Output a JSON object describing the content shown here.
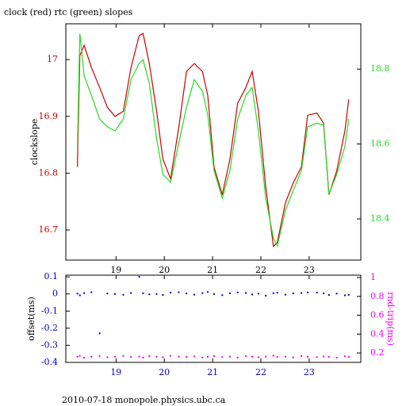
{
  "chart_data": [
    {
      "type": "line",
      "title": "clock (red) rtc (green) slopes",
      "y_label": "clockslope",
      "x": [
        18.2,
        18.25,
        18.34,
        18.49,
        18.66,
        18.82,
        18.98,
        19.15,
        19.31,
        19.48,
        19.56,
        19.69,
        19.84,
        19.97,
        20.13,
        20.3,
        20.46,
        20.62,
        20.79,
        20.9,
        21.03,
        21.2,
        21.36,
        21.52,
        21.69,
        21.82,
        21.95,
        22.1,
        22.26,
        22.34,
        22.51,
        22.67,
        22.84,
        22.97,
        23.16,
        23.3,
        23.41,
        23.57,
        23.74,
        23.82
      ],
      "series": [
        {
          "name": "clock",
          "color": "#cc0000",
          "axis": "y",
          "values": [
            16.811,
            17.007,
            17.025,
            16.986,
            16.951,
            16.916,
            16.9,
            16.909,
            16.986,
            17.042,
            17.046,
            16.993,
            16.909,
            16.825,
            16.79,
            16.881,
            16.979,
            16.993,
            16.979,
            16.937,
            16.811,
            16.762,
            16.825,
            16.923,
            16.951,
            16.979,
            16.909,
            16.776,
            16.671,
            16.678,
            16.748,
            16.783,
            16.811,
            16.902,
            16.906,
            16.888,
            16.762,
            16.804,
            16.874,
            16.93
          ]
        },
        {
          "name": "rtc",
          "color": "#22dd22",
          "axis": "y2",
          "values": [
            18.582,
            18.895,
            18.783,
            18.73,
            18.667,
            18.646,
            18.635,
            18.667,
            18.772,
            18.815,
            18.825,
            18.762,
            18.614,
            18.519,
            18.498,
            18.603,
            18.698,
            18.772,
            18.741,
            18.677,
            18.529,
            18.455,
            18.529,
            18.667,
            18.73,
            18.751,
            18.635,
            18.455,
            18.349,
            18.328,
            18.423,
            18.476,
            18.529,
            18.646,
            18.656,
            18.65,
            18.466,
            18.519,
            18.593,
            18.667
          ]
        }
      ],
      "xlim": [
        17.96,
        24.07
      ],
      "xticks": [
        19,
        20,
        21,
        22,
        23
      ],
      "ylim": [
        16.647,
        17.063
      ],
      "yticks": [
        16.7,
        16.8,
        16.9,
        17
      ],
      "ytick_color": "#cc0000",
      "y2lim": [
        18.29,
        18.921
      ],
      "y2ticks": [
        18.4,
        18.6,
        18.8
      ],
      "y2tick_color": "#22dd22"
    },
    {
      "type": "scatter",
      "y_label": "offset(ms)",
      "y2_label": "rnd-trip(ms)",
      "footer": "2010-07-18  monopole.physics.ubc.ca",
      "x": [
        18.2,
        18.25,
        18.34,
        18.49,
        18.66,
        18.82,
        18.98,
        19.15,
        19.31,
        19.48,
        19.56,
        19.69,
        19.84,
        19.97,
        20.13,
        20.3,
        20.46,
        20.62,
        20.79,
        20.9,
        21.03,
        21.2,
        21.36,
        21.52,
        21.69,
        21.82,
        21.95,
        22.1,
        22.26,
        22.34,
        22.51,
        22.67,
        22.84,
        22.97,
        23.16,
        23.3,
        23.41,
        23.57,
        23.74,
        23.82
      ],
      "series": [
        {
          "name": "offset",
          "color": "#0000cc",
          "axis": "y",
          "values": [
            0.002,
            -0.008,
            0.005,
            0.01,
            -0.23,
            0.003,
            0,
            -0.005,
            0.006,
            0.1,
            0.004,
            -0.002,
            0,
            -0.006,
            0.008,
            0.01,
            0.003,
            -0.004,
            0.005,
            0.012,
            0,
            -0.007,
            0.004,
            0.009,
            0.006,
            -0.003,
            0.002,
            -0.01,
            0.005,
            0.007,
            -0.004,
            0.003,
            0.006,
            0.009,
            0.008,
            0.004,
            -0.006,
            0.002,
            -0.008,
            -0.005
          ]
        },
        {
          "name": "rnd-trip",
          "color": "#ee00ee",
          "axis": "y2",
          "values": [
            0.16,
            0.17,
            0.15,
            0.16,
            0.165,
            0.155,
            0.16,
            0.17,
            0.158,
            0.162,
            0.15,
            0.166,
            0.16,
            0.155,
            0.17,
            0.16,
            0.158,
            0.164,
            0.152,
            0.16,
            0.168,
            0.157,
            0.161,
            0.15,
            0.166,
            0.16,
            0.155,
            0.162,
            0.17,
            0.158,
            0.16,
            0.153,
            0.167,
            0.16,
            0.156,
            0.163,
            0.159,
            0.15,
            0.165,
            0.16
          ]
        }
      ],
      "xlim": [
        17.96,
        24.07
      ],
      "xticks": [
        19,
        20,
        21,
        22,
        23
      ],
      "xtick_color": "#0000cc",
      "ylim": [
        -0.4,
        0.11
      ],
      "yticks": [
        0.1,
        0,
        -0.1,
        -0.2,
        -0.3,
        -0.4
      ],
      "ytick_color": "#0000cc",
      "y2lim": [
        0.1,
        1.025
      ],
      "y2ticks": [
        0.2,
        0.4,
        0.6,
        0.8,
        1
      ],
      "y2tick_color": "#ee00ee"
    }
  ]
}
